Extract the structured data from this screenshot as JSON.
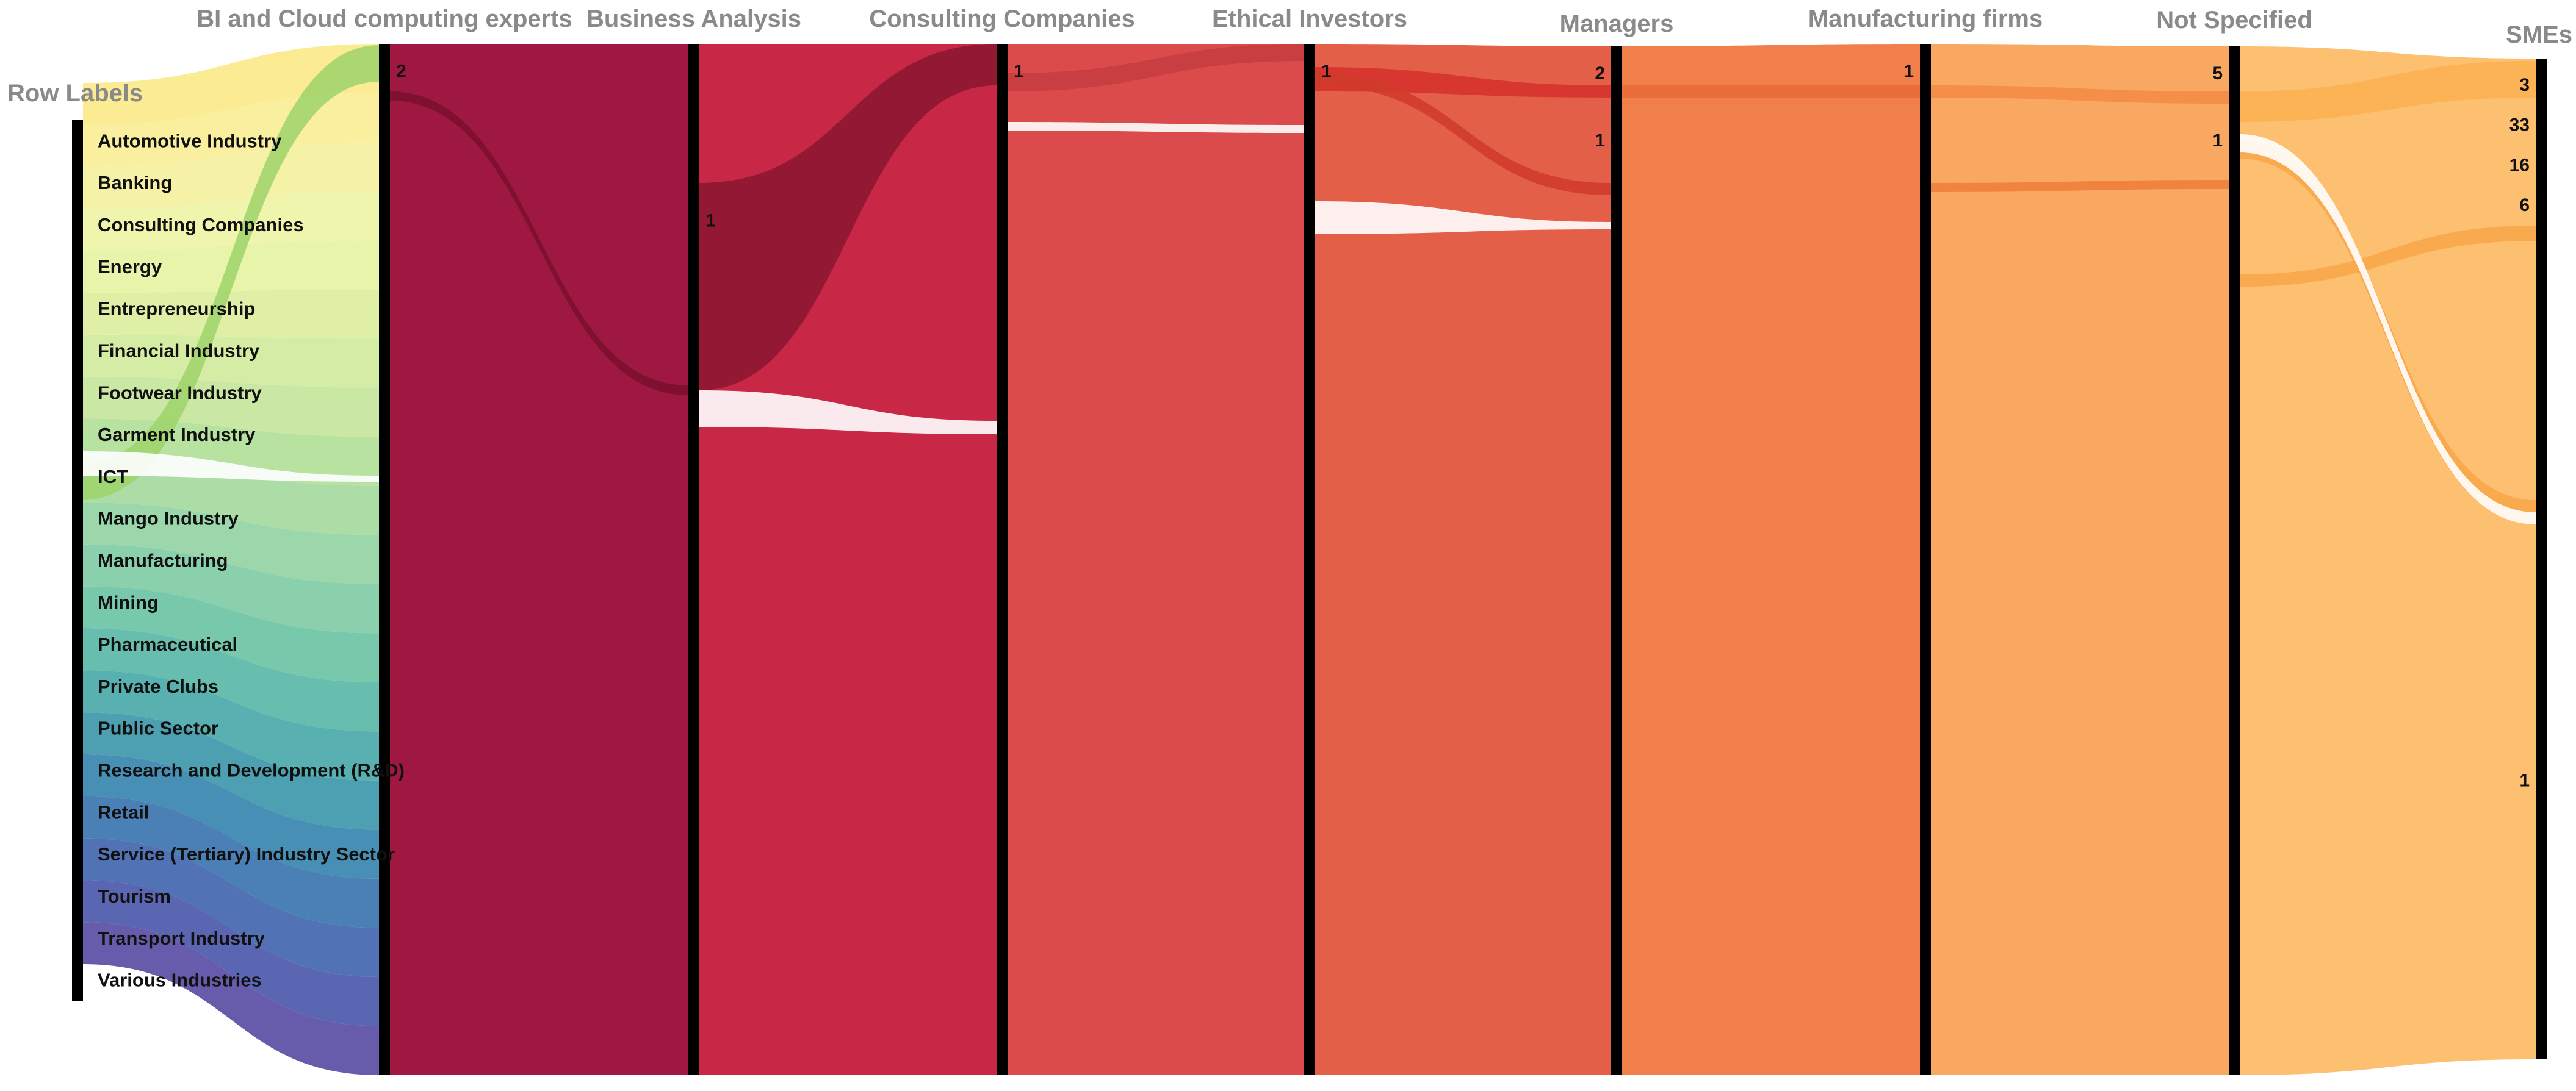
{
  "chart_data": {
    "type": "sankey",
    "axes": [
      {
        "name": "Row Labels",
        "color": "#1a1a1a"
      },
      {
        "name": "BI and Cloud computing experts",
        "color": "#9e1842"
      },
      {
        "name": "Business Analysis",
        "color": "#c82845"
      },
      {
        "name": "Consulting Companies",
        "color": "#db4b4b"
      },
      {
        "name": "Ethical Investors",
        "color": "#e45f48"
      },
      {
        "name": "Managers",
        "color": "#f07f4c"
      },
      {
        "name": "Manufacturing firms",
        "color": "#f9a862"
      },
      {
        "name": "Not Specified",
        "color": "#fdc071"
      },
      {
        "name": "SMEs",
        "color": "#fdd079"
      }
    ],
    "categories": [
      {
        "name": "Automotive Industry",
        "color": "#fbe98a"
      },
      {
        "name": "Banking",
        "color": "#f9ee96"
      },
      {
        "name": "Consulting Companies",
        "color": "#f4f0a0"
      },
      {
        "name": "Energy",
        "color": "#eef4a6"
      },
      {
        "name": "Entrepreneurship",
        "color": "#e6f3a2"
      },
      {
        "name": "Financial Industry",
        "color": "#dcef9e"
      },
      {
        "name": "Footwear Industry",
        "color": "#d0ea9c"
      },
      {
        "name": "Garment Industry",
        "color": "#c5e59c"
      },
      {
        "name": "ICT",
        "color": "#b2df98"
      },
      {
        "name": "Mango Industry",
        "color": "#a6da9f"
      },
      {
        "name": "Manufacturing",
        "color": "#94d4a4"
      },
      {
        "name": "Mining",
        "color": "#80cca5"
      },
      {
        "name": "Pharmaceutical",
        "color": "#6cc3a5"
      },
      {
        "name": "Private Clubs",
        "color": "#5ab7a7"
      },
      {
        "name": "Public Sector",
        "color": "#4aa9a9"
      },
      {
        "name": "Research and Development (R&D)",
        "color": "#3e98ab"
      },
      {
        "name": "Retail",
        "color": "#3786ae"
      },
      {
        "name": "Service (Tertiary) Industry Sector",
        "color": "#3b75b0"
      },
      {
        "name": "Tourism",
        "color": "#4266af"
      },
      {
        "name": "Transport Industry",
        "color": "#4c59ab"
      },
      {
        "name": "Various Industries",
        "color": "#5a4ea4"
      }
    ],
    "count_labels": [
      {
        "axis": 1,
        "text": "2",
        "y": 0.025
      },
      {
        "axis": 2,
        "text": "1",
        "y": 0.17
      },
      {
        "axis": 3,
        "text": "1",
        "y": 0.025
      },
      {
        "axis": 4,
        "text": "1",
        "y": 0.025
      },
      {
        "axis": 5,
        "text": "2",
        "y": 0.025
      },
      {
        "axis": 5,
        "text": "1",
        "y": 0.09
      },
      {
        "axis": 6,
        "text": "1",
        "y": 0.025
      },
      {
        "axis": 7,
        "text": "5",
        "y": 0.025
      },
      {
        "axis": 7,
        "text": "1",
        "y": 0.09
      },
      {
        "axis": 8,
        "text": "3",
        "y": 0.025
      },
      {
        "axis": 8,
        "text": "33",
        "y": 0.065
      },
      {
        "axis": 8,
        "text": "16",
        "y": 0.105
      },
      {
        "axis": 8,
        "text": "6",
        "y": 0.145
      },
      {
        "axis": 8,
        "text": "1",
        "y": 0.72
      }
    ]
  }
}
